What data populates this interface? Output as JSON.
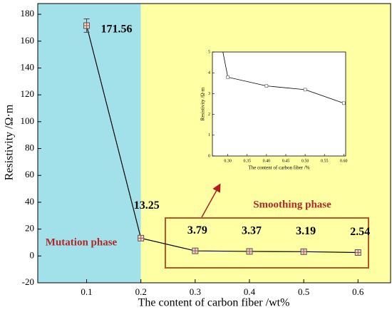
{
  "chart_data": {
    "type": "line",
    "xlabel": "The content of carbon fiber /wt%",
    "ylabel": "Resistivity /Ω·m",
    "x": [
      0.1,
      0.2,
      0.3,
      0.4,
      0.5,
      0.6
    ],
    "values": [
      171.56,
      13.25,
      3.79,
      3.37,
      3.19,
      2.54
    ],
    "errors": [
      5,
      1,
      1,
      1,
      1,
      1
    ],
    "color": "#000000",
    "xlim": [
      0.01,
      0.66
    ],
    "xticks": [
      0.1,
      0.2,
      0.3,
      0.4,
      0.5,
      0.6
    ],
    "ylim": [
      -20,
      188
    ],
    "yticks": [
      -20,
      0,
      20,
      40,
      60,
      80,
      100,
      120,
      140,
      160,
      180
    ],
    "phases": [
      {
        "label": "Mutation phase",
        "color": "#a3e1ea",
        "x_end": 0.2
      },
      {
        "label": "Smoothing phase",
        "color": "#ffffa3"
      }
    ],
    "inset": {
      "xlabel": "The content of carbon fiber /%",
      "ylabel": "Resistivity /Ω·m",
      "xlim": [
        0.26,
        0.605
      ],
      "xticks": [
        {
          "value": 0.3,
          "label": "0.30"
        },
        {
          "value": 0.35,
          "label": "0.35"
        },
        {
          "value": 0.4,
          "label": "0.40"
        },
        {
          "value": 0.45,
          "label": "0.45"
        },
        {
          "value": 0.5,
          "label": "0.50"
        },
        {
          "value": 0.55,
          "label": "0.55"
        },
        {
          "value": 0.6,
          "label": "0.60"
        }
      ],
      "ylim": [
        0,
        5
      ],
      "yticks": [
        0,
        1,
        2,
        3,
        4,
        5
      ]
    }
  }
}
